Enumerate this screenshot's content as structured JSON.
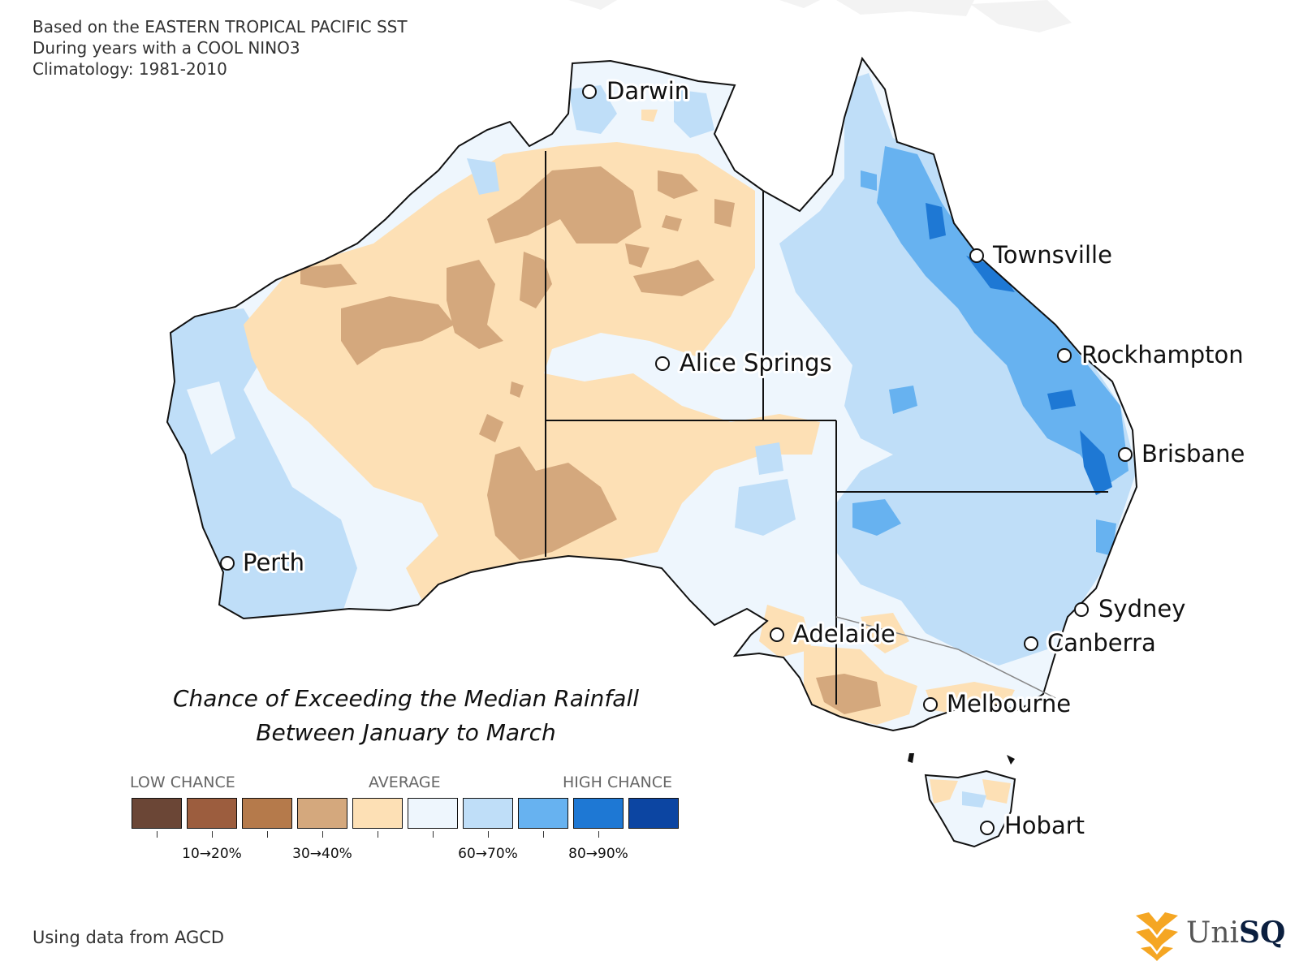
{
  "header": {
    "line1": "Based on the EASTERN TROPICAL PACIFIC SST",
    "line2": "During years with a COOL NINO3",
    "line3": "Climatology: 1981-2010"
  },
  "title": {
    "line1": "Chance of Exceeding the Median Rainfall",
    "line2": "Between January to March"
  },
  "legend": {
    "low_label": "LOW CHANCE",
    "average_label": "AVERAGE",
    "high_label": "HIGH CHANCE",
    "colors": [
      "#6b4636",
      "#9c5d3e",
      "#b57a4b",
      "#d4a87d",
      "#fde0b5",
      "#eef6fd",
      "#bfdef8",
      "#67b2f0",
      "#1e78d4",
      "#0c45a2"
    ],
    "tick_labels": [
      "10→20%",
      "30→40%",
      "60→70%",
      "80→90%"
    ]
  },
  "cities": [
    {
      "name": "Darwin"
    },
    {
      "name": "Townsville"
    },
    {
      "name": "Rockhampton"
    },
    {
      "name": "Alice Springs"
    },
    {
      "name": "Brisbane"
    },
    {
      "name": "Perth"
    },
    {
      "name": "Sydney"
    },
    {
      "name": "Adelaide"
    },
    {
      "name": "Canberra"
    },
    {
      "name": "Melbourne"
    },
    {
      "name": "Hobart"
    }
  ],
  "footer": "Using data from AGCD",
  "logo": {
    "text_uni": "Uni",
    "text_sq": "SQ"
  }
}
